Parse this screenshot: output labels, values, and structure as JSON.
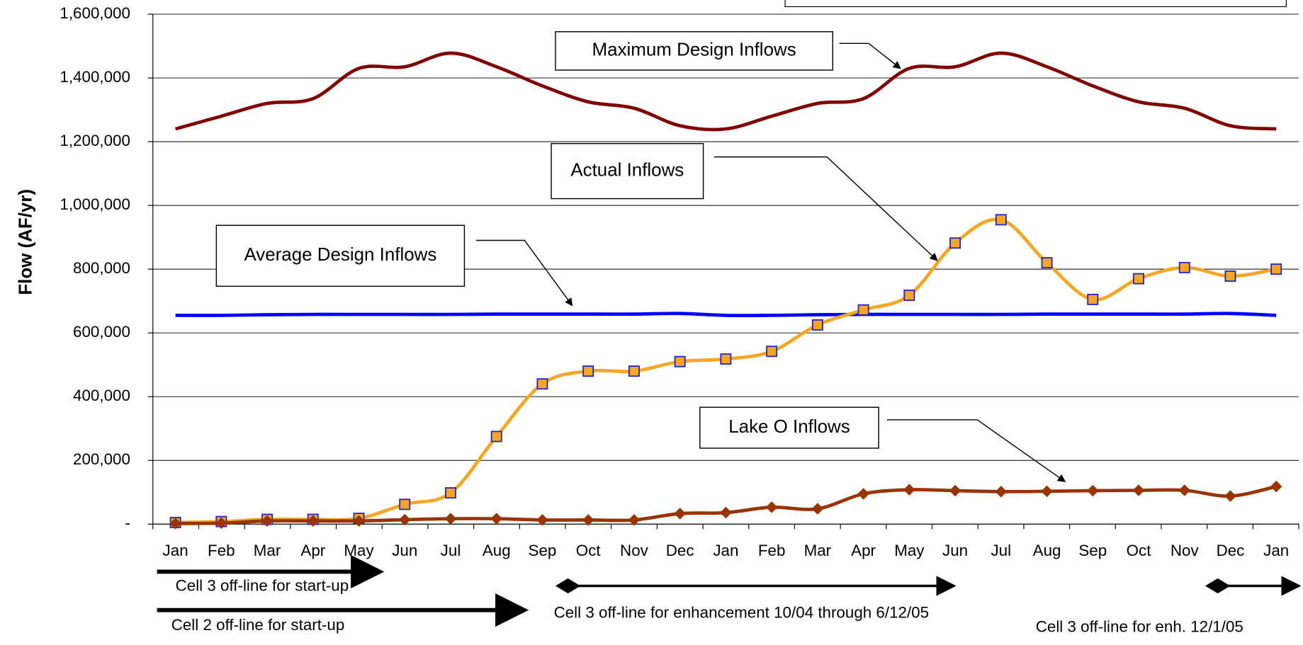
{
  "chart_data": {
    "type": "line",
    "y_label": "Flow (AF/yr)",
    "categories": [
      "Jan",
      "Feb",
      "Mar",
      "Apr",
      "May",
      "Jun",
      "Jul",
      "Aug",
      "Sep",
      "Oct",
      "Nov",
      "Dec",
      "Jan",
      "Feb",
      "Mar",
      "Apr",
      "May",
      "Jun",
      "Jul",
      "Aug",
      "Sep",
      "Oct",
      "Nov",
      "Dec",
      "Jan"
    ],
    "ylim": [
      0,
      1600000
    ],
    "yticks": [
      {
        "value": 0,
        "label": "-"
      },
      {
        "value": 200000,
        "label": "200,000"
      },
      {
        "value": 400000,
        "label": "400,000"
      },
      {
        "value": 600000,
        "label": "600,000"
      },
      {
        "value": 800000,
        "label": "800,000"
      },
      {
        "value": 1000000,
        "label": "1,000,000"
      },
      {
        "value": 1200000,
        "label": "1,200,000"
      },
      {
        "value": 1400000,
        "label": "1,400,000"
      },
      {
        "value": 1600000,
        "label": "1,600,000"
      }
    ],
    "grid": true,
    "series": [
      {
        "name": "Maximum Design Inflows",
        "color": "#800000",
        "marker": "none",
        "values": [
          1240000,
          1280000,
          1320000,
          1335000,
          1430000,
          1435000,
          1478000,
          1435000,
          1375000,
          1325000,
          1305000,
          1250000,
          1240000,
          1280000,
          1320000,
          1335000,
          1430000,
          1435000,
          1478000,
          1435000,
          1375000,
          1325000,
          1305000,
          1250000,
          1240000
        ]
      },
      {
        "name": "Average Design Inflows",
        "color": "#0000ff",
        "marker": "none",
        "values": [
          655000,
          655000,
          657000,
          658000,
          658000,
          658000,
          658000,
          659000,
          659000,
          659000,
          659000,
          661000,
          655000,
          655000,
          657000,
          658000,
          658000,
          658000,
          658000,
          659000,
          659000,
          659000,
          659000,
          661000,
          655000
        ]
      },
      {
        "name": "Actual Inflows",
        "color": "#f5a623",
        "marker": "square",
        "values": [
          5000,
          8000,
          15000,
          15000,
          18000,
          62000,
          98000,
          275000,
          440000,
          480000,
          480000,
          510000,
          518000,
          542000,
          625000,
          672000,
          718000,
          882000,
          955000,
          820000,
          705000,
          770000,
          805000,
          778000,
          800000
        ]
      },
      {
        "name": "Lake O Inflows",
        "color": "#993300",
        "marker": "diamond",
        "values": [
          2000,
          3000,
          10000,
          10000,
          10000,
          14000,
          17000,
          17000,
          13000,
          13000,
          13000,
          33000,
          36000,
          53000,
          48000,
          95000,
          108000,
          105000,
          102000,
          103000,
          105000,
          106000,
          106000,
          88000,
          118000
        ]
      }
    ],
    "annotations": [
      "Cell 3 off-line for start-up",
      "Cell 2 off-line for start-up",
      "Cell 3 off-line for enhancement 10/04 through 6/12/05",
      "Cell 3 off-line for enh. 12/1/05"
    ]
  }
}
